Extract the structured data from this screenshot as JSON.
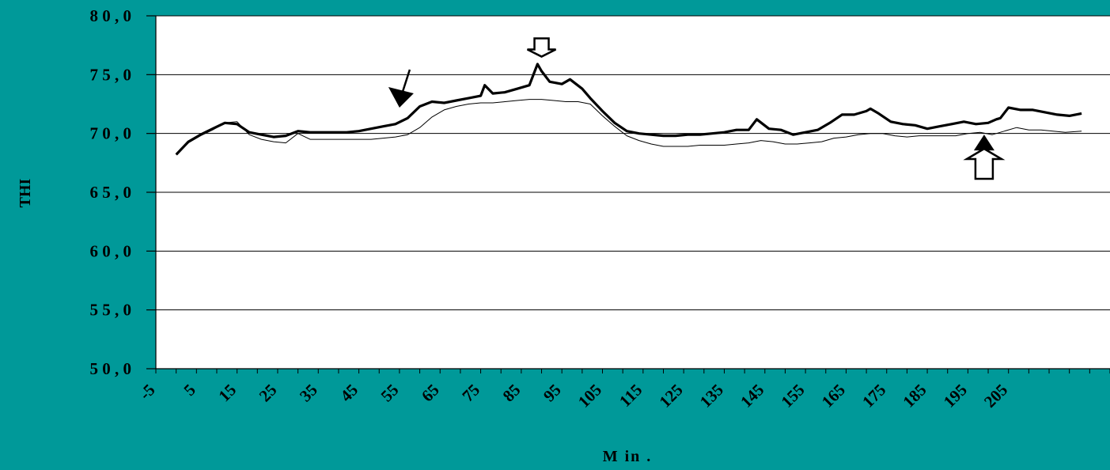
{
  "chart_data": {
    "type": "line",
    "title": "",
    "xlabel": "M in .",
    "ylabel": "THI",
    "xlim": [
      -5,
      230
    ],
    "ylim": [
      50,
      80
    ],
    "x_tick_labels": [
      "-5",
      "5",
      "15",
      "25",
      "35",
      "45",
      "55",
      "65",
      "75",
      "85",
      "95",
      "105",
      "115",
      "125",
      "135",
      "145",
      "155",
      "165",
      "175",
      "185",
      "195",
      "205"
    ],
    "y_tick_labels": [
      "5 0 , 0",
      "5 5 , 0",
      "6 0 , 0",
      "6 5 , 0",
      "7 0 , 0",
      "7 5 , 0",
      "8 0 , 0"
    ],
    "y_tick_values": [
      50,
      55,
      60,
      65,
      70,
      75,
      80
    ],
    "grid": "horizontal",
    "legend": "none",
    "colors": {
      "background": "#009999",
      "plot_area": "#ffffff",
      "lines": "#000000"
    },
    "series": [
      {
        "style": "thick",
        "x": [
          0,
          3,
          6,
          9,
          12,
          15,
          18,
          21,
          24,
          27,
          30,
          33,
          36,
          39,
          42,
          45,
          48,
          51,
          54,
          57,
          60,
          63,
          66,
          69,
          72,
          75,
          76,
          78,
          81,
          84,
          87,
          89,
          90,
          92,
          95,
          97,
          100,
          102,
          105,
          108,
          111,
          114,
          117,
          120,
          123,
          126,
          129,
          132,
          135,
          138,
          141,
          143,
          146,
          149,
          152,
          155,
          158,
          161,
          164,
          167,
          170,
          171,
          173,
          176,
          179,
          182,
          185,
          188,
          191,
          194,
          197,
          200,
          202,
          203,
          205,
          208,
          211,
          214,
          217,
          220,
          223
        ],
        "values": [
          68.2,
          69.3,
          69.9,
          70.4,
          70.9,
          70.8,
          70.1,
          69.9,
          69.7,
          69.8,
          70.2,
          70.1,
          70.1,
          70.1,
          70.1,
          70.2,
          70.4,
          70.6,
          70.8,
          71.3,
          72.3,
          72.7,
          72.6,
          72.8,
          73.0,
          73.2,
          74.1,
          73.4,
          73.5,
          73.8,
          74.1,
          75.9,
          75.3,
          74.4,
          74.2,
          74.6,
          73.8,
          73.0,
          71.9,
          70.9,
          70.2,
          70.0,
          69.9,
          69.8,
          69.8,
          69.9,
          69.9,
          70.0,
          70.1,
          70.3,
          70.3,
          71.2,
          70.4,
          70.3,
          69.9,
          70.1,
          70.3,
          70.9,
          71.6,
          71.6,
          71.9,
          72.1,
          71.7,
          71.0,
          70.8,
          70.7,
          70.4,
          70.6,
          70.8,
          71.0,
          70.8,
          70.9,
          71.2,
          71.3,
          72.2,
          72.0,
          72.0,
          71.8,
          71.6,
          71.5,
          71.7
        ]
      },
      {
        "style": "thin",
        "x": [
          0,
          3,
          6,
          9,
          12,
          15,
          18,
          21,
          24,
          27,
          30,
          33,
          36,
          39,
          42,
          45,
          48,
          51,
          54,
          57,
          60,
          63,
          66,
          69,
          72,
          75,
          78,
          81,
          84,
          87,
          90,
          93,
          96,
          99,
          102,
          105,
          108,
          111,
          114,
          117,
          120,
          123,
          126,
          129,
          132,
          135,
          138,
          141,
          144,
          147,
          150,
          153,
          156,
          159,
          162,
          165,
          168,
          171,
          174,
          177,
          180,
          183,
          186,
          189,
          192,
          195,
          198,
          201,
          204,
          207,
          210,
          213,
          216,
          219,
          223
        ],
        "values": [
          68.2,
          69.2,
          69.8,
          70.3,
          70.9,
          71.0,
          69.9,
          69.5,
          69.3,
          69.2,
          70.0,
          69.5,
          69.5,
          69.5,
          69.5,
          69.5,
          69.5,
          69.6,
          69.7,
          69.9,
          70.5,
          71.4,
          72.0,
          72.3,
          72.5,
          72.6,
          72.6,
          72.7,
          72.8,
          72.9,
          72.9,
          72.8,
          72.7,
          72.7,
          72.5,
          71.5,
          70.6,
          69.8,
          69.4,
          69.1,
          68.9,
          68.9,
          68.9,
          69.0,
          69.0,
          69.0,
          69.1,
          69.2,
          69.4,
          69.3,
          69.1,
          69.1,
          69.2,
          69.3,
          69.6,
          69.7,
          69.9,
          70.0,
          70.0,
          69.8,
          69.7,
          69.8,
          69.8,
          69.8,
          69.8,
          70.0,
          70.1,
          69.9,
          70.2,
          70.5,
          70.3,
          70.3,
          70.2,
          70.1,
          70.2
        ]
      }
    ],
    "annotations": [
      {
        "type": "filled-arrow",
        "at_x": 55,
        "at_y": 72.2,
        "direction": "down-left"
      },
      {
        "type": "hollow-arrow",
        "at_x": 90,
        "at_y": 76.6,
        "direction": "down"
      },
      {
        "type": "filled-arrow",
        "at_x": 199,
        "at_y": 69.9,
        "direction": "up"
      },
      {
        "type": "hollow-arrow",
        "at_x": 199,
        "at_y": 68.7,
        "direction": "up"
      }
    ]
  }
}
